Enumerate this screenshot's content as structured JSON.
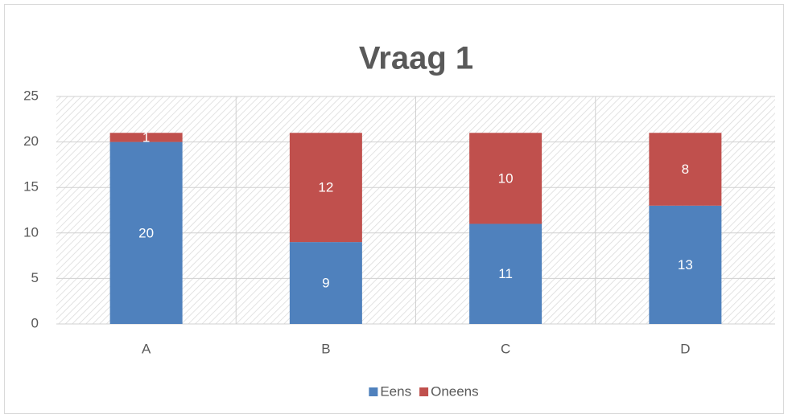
{
  "chart_data": {
    "type": "bar",
    "stacked": true,
    "title": "Vraag 1",
    "categories": [
      "A",
      "B",
      "C",
      "D"
    ],
    "series": [
      {
        "name": "Eens",
        "color": "#4f81bd",
        "values": [
          20,
          9,
          11,
          13
        ]
      },
      {
        "name": "Oneens",
        "color": "#c0504d",
        "values": [
          1,
          12,
          10,
          8
        ]
      }
    ],
    "ylim": [
      0,
      25
    ],
    "yticks": [
      0,
      5,
      10,
      15,
      20,
      25
    ],
    "grid": true,
    "legend": "bottom"
  }
}
